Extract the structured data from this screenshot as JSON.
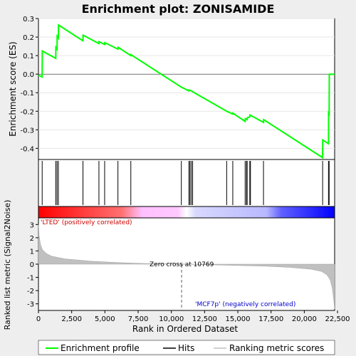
{
  "chart_data": {
    "type": "line",
    "title": "Enrichment plot: ZONISAMIDE",
    "xlabel": "Rank in Ordered Dataset",
    "xlim": [
      0,
      22283
    ],
    "x_ticks": [
      0,
      2500,
      5000,
      7500,
      10000,
      12500,
      15000,
      17500,
      20000,
      22500
    ],
    "x_tick_labels": [
      "0",
      "2,500",
      "5,000",
      "7,500",
      "10,000",
      "12,500",
      "15,000",
      "17,500",
      "20,000",
      "22,500"
    ],
    "top_panel": {
      "ylabel": "Enrichment score (ES)",
      "ylim": [
        -0.46,
        0.3
      ],
      "y_ticks": [
        -0.4,
        -0.3,
        -0.2,
        -0.1,
        0.0,
        0.1,
        0.2,
        0.3
      ],
      "y_tick_labels": [
        "-0.4",
        "-0.3",
        "-0.2",
        "-0.1",
        "0.0",
        "0.1",
        "0.2",
        "0.3"
      ],
      "series": [
        {
          "name": "Enrichment profile",
          "color": "#00ff00",
          "x": [
            0,
            280,
            290,
            1300,
            1310,
            1400,
            1410,
            1500,
            1510,
            3350,
            3360,
            4550,
            4560,
            4980,
            4990,
            5980,
            5990,
            6950,
            6960,
            10750,
            11320,
            11330,
            11500,
            11510,
            11600,
            14160,
            14170,
            14620,
            14630,
            15550,
            15560,
            15700,
            15710,
            15900,
            15910,
            16930,
            16940,
            21380,
            21390,
            21820,
            21830,
            21870,
            21880,
            22283
          ],
          "y": [
            -0.005,
            -0.015,
            0.125,
            0.085,
            0.145,
            0.135,
            0.205,
            0.195,
            0.265,
            0.18,
            0.21,
            0.165,
            0.175,
            0.16,
            0.17,
            0.135,
            0.145,
            0.1,
            0.105,
            -0.07,
            -0.09,
            -0.085,
            -0.09,
            -0.09,
            -0.095,
            -0.2,
            -0.2,
            -0.215,
            -0.21,
            -0.255,
            -0.24,
            -0.245,
            -0.235,
            -0.23,
            -0.22,
            -0.26,
            -0.245,
            -0.45,
            -0.355,
            -0.375,
            -0.21,
            -0.215,
            0.0,
            0.0
          ]
        }
      ]
    },
    "hits": {
      "name": "Hits",
      "x": [
        280,
        1300,
        1400,
        1500,
        3350,
        4550,
        4980,
        5980,
        6950,
        10750,
        11320,
        11400,
        11500,
        11600,
        14160,
        14620,
        15550,
        15650,
        15700,
        15900,
        15950,
        16930,
        21380,
        21820,
        21870
      ]
    },
    "ranking_panel": {
      "ylabel": "Ranked list metric (Signal2Noise)",
      "series_name": "Ranking metric scores",
      "ylim": [
        -3.5,
        3.5
      ],
      "y_ticks": [
        -3,
        -2,
        -1,
        0,
        1,
        2,
        3
      ],
      "y_tick_labels": [
        "-3",
        "-2",
        "-1",
        "0",
        "1",
        "2",
        "3"
      ],
      "x": [
        0,
        50,
        150,
        300,
        600,
        1000,
        2000,
        4000,
        6000,
        8000,
        10769,
        13000,
        15000,
        17000,
        19000,
        20500,
        21300,
        21700,
        21950,
        22100,
        22200,
        22283
      ],
      "y": [
        3.0,
        2.2,
        1.5,
        1.1,
        0.8,
        0.6,
        0.4,
        0.22,
        0.12,
        0.05,
        0.0,
        -0.05,
        -0.1,
        -0.15,
        -0.25,
        -0.38,
        -0.55,
        -0.8,
        -1.2,
        -1.8,
        -2.6,
        -3.4
      ],
      "zero_cross_label": "Zero cross at 10769",
      "zero_cross": 10769,
      "positive_label": "'LTED' (positively correlated)",
      "negative_label": "'MCF7p' (negatively correlated)"
    },
    "legend": {
      "placement": "bottom",
      "entries": [
        "Enrichment profile",
        "Hits",
        "Ranking metric scores"
      ]
    },
    "colors": {
      "profile": "#00ff00",
      "hits": "#000000",
      "ranking_fill": "#c0c0c0",
      "positive": "#ff0000",
      "negative": "#0000ff"
    }
  }
}
